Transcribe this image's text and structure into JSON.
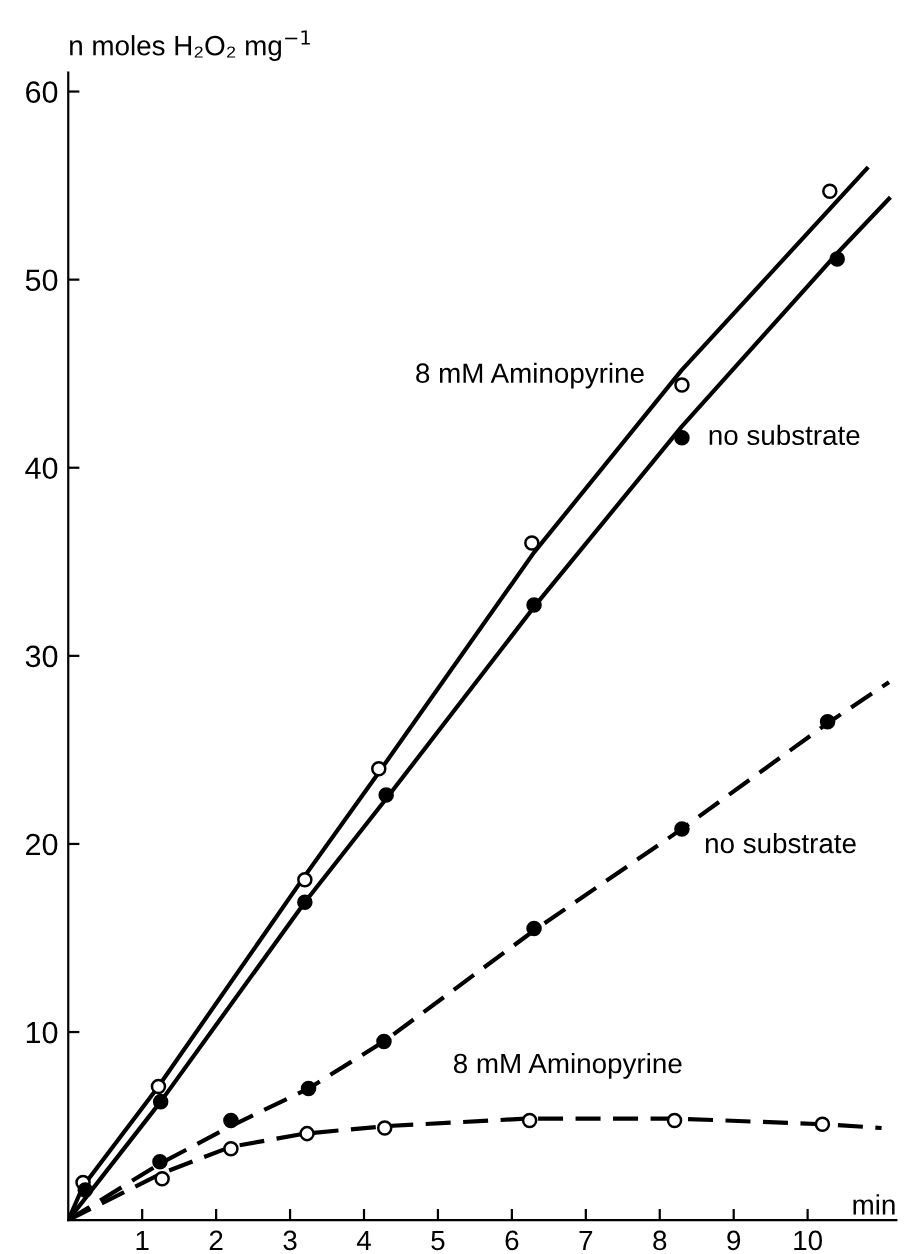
{
  "chart_data": {
    "type": "line",
    "ylabel": "n moles H₂O₂ mg$^{−1}$",
    "xlabel": "min",
    "xlim": [
      0,
      11.2
    ],
    "ylim": [
      0,
      61
    ],
    "xticks": [
      1,
      2,
      3,
      4,
      5,
      6,
      7,
      8,
      9,
      10
    ],
    "yticks": [
      10,
      20,
      30,
      40,
      50,
      60
    ],
    "grid": false,
    "legend": false,
    "series": [
      {
        "name": "8 mM Aminopyrine",
        "color": "#000000",
        "line_style": "solid",
        "marker": "none",
        "x": [
          0,
          0.2,
          1.2,
          3.2,
          4.2,
          6.3,
          8.3,
          10.8
        ],
        "values": [
          0,
          1.8,
          7.0,
          18.3,
          23.8,
          35.5,
          45.2,
          55.9
        ]
      },
      {
        "name": "no substrate",
        "color": "#000000",
        "line_style": "solid",
        "marker": "none",
        "x": [
          0,
          1.25,
          3.2,
          4.3,
          6.3,
          8.3,
          10.4,
          11.1
        ],
        "values": [
          0,
          6.3,
          16.9,
          22.4,
          32.6,
          42.2,
          51.4,
          54.3
        ]
      },
      {
        "name": "no substrate",
        "color": "#000000",
        "line_style": "dashed",
        "marker": "none",
        "x": [
          0,
          1.24,
          2.2,
          3.25,
          4.27,
          6.3,
          8.3,
          10.3,
          11.1
        ],
        "values": [
          0,
          3.0,
          5.0,
          7.0,
          9.5,
          15.4,
          20.8,
          26.5,
          28.6
        ]
      },
      {
        "name": "8 mM Aminopyrine",
        "color": "#000000",
        "line_style": "dashed",
        "marker": "none",
        "x": [
          0,
          1.27,
          2.2,
          3.2,
          4.3,
          6.2,
          8.2,
          10.2,
          11.0
        ],
        "values": [
          0,
          2.5,
          3.9,
          4.6,
          5.0,
          5.4,
          5.4,
          5.1,
          4.9
        ]
      },
      {
        "type": "scatter",
        "color": "#ffffff",
        "marker": "circle",
        "x": [
          0.2,
          1.22,
          3.2,
          4.2,
          6.27,
          8.3,
          10.3
        ],
        "values": [
          2.0,
          7.1,
          18.1,
          24.0,
          36.0,
          44.4,
          54.7
        ]
      },
      {
        "type": "scatter",
        "color": "#000000",
        "marker": "circle",
        "x": [
          0.23,
          1.25,
          3.2,
          4.3,
          6.3,
          8.3,
          10.4
        ],
        "values": [
          1.6,
          6.3,
          16.9,
          22.6,
          32.7,
          41.6,
          51.1
        ]
      },
      {
        "type": "scatter",
        "color": "#000000",
        "marker": "circle",
        "x": [
          1.24,
          2.2,
          3.25,
          4.27,
          6.3,
          8.3,
          10.27
        ],
        "values": [
          3.1,
          5.3,
          7.0,
          9.5,
          15.5,
          20.8,
          26.5
        ]
      },
      {
        "type": "scatter",
        "color": "#ffffff",
        "marker": "circle",
        "x": [
          1.27,
          2.2,
          3.23,
          4.28,
          6.24,
          8.2,
          10.2
        ],
        "values": [
          2.2,
          3.8,
          4.6,
          4.9,
          5.3,
          5.3,
          5.1
        ]
      }
    ]
  }
}
